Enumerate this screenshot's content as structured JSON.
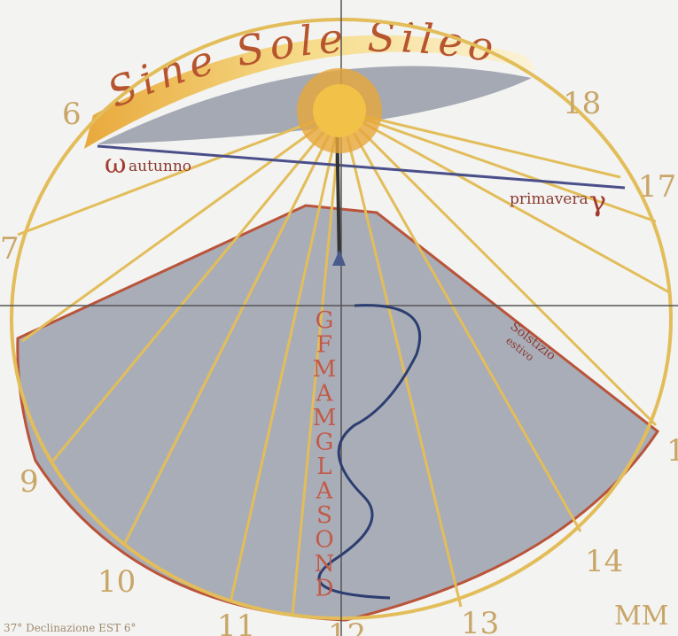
{
  "motto": "Sine Sole Sileo",
  "hours": [
    {
      "label": "6"
    },
    {
      "label": "7"
    },
    {
      "label": "9"
    },
    {
      "label": "10"
    },
    {
      "label": "11"
    },
    {
      "label": "12"
    },
    {
      "label": "13"
    },
    {
      "label": "14"
    },
    {
      "label": "1"
    },
    {
      "label": "17"
    },
    {
      "label": "18"
    }
  ],
  "equinoxes": {
    "autumn_symbol": "ω",
    "autumn": "autunno",
    "spring": "primavera",
    "spring_symbol": "γ"
  },
  "solstice": {
    "line1": "Solstizio",
    "line2": "estivo"
  },
  "months": [
    "G",
    "F",
    "M",
    "A",
    "M",
    "G",
    "L",
    "A",
    "S",
    "O",
    "N",
    "D"
  ],
  "declination": "37° Declinazione EST 6°",
  "signature": "MM"
}
